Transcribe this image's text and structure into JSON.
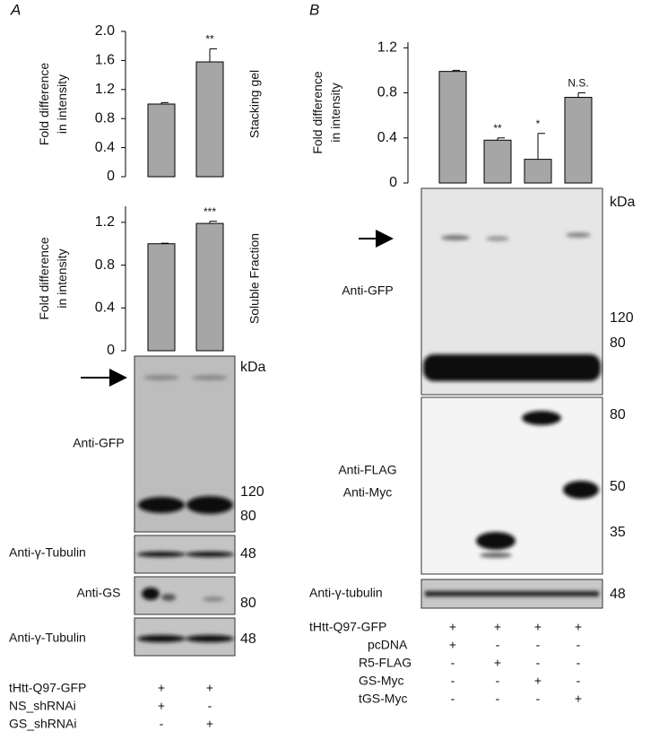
{
  "chart_data": [
    {
      "type": "bar",
      "categories": [
        null,
        null
      ],
      "values": [
        1.0,
        1.58
      ],
      "errors": [
        0.02,
        0.18
      ],
      "significance": [
        null,
        "**"
      ],
      "ylabel": [
        "Fold difference",
        "in intensity"
      ],
      "side_label": "Stacking gel",
      "color": "#a6a6a6",
      "ylim": [
        0,
        2.0
      ],
      "yticks": [
        0,
        0.4,
        0.8,
        1.2,
        1.6,
        {
          "value": 2.0,
          "label": "2.0"
        }
      ]
    },
    {
      "type": "bar",
      "categories": [
        null,
        null
      ],
      "values": [
        1.0,
        1.19
      ],
      "errors": [
        0.005,
        0.02
      ],
      "significance": [
        null,
        "***"
      ],
      "ylabel": [
        "Fold difference",
        "in intensity"
      ],
      "side_label": "Soluble Fraction",
      "color": "#a6a6a6",
      "ylim": [
        0,
        1.35
      ],
      "yticks": [
        0,
        0.4,
        0.8,
        1.2
      ]
    },
    {
      "type": "bar",
      "categories": [
        null,
        null,
        null,
        null
      ],
      "values": [
        0.99,
        0.38,
        0.21,
        0.76
      ],
      "errors": [
        0.01,
        0.02,
        0.23,
        0.04
      ],
      "significance": [
        null,
        "**",
        "*",
        "N.S."
      ],
      "ylabel": [
        "Fold difference",
        "in intensity"
      ],
      "color": "#a6a6a6",
      "ylim": [
        0,
        1.25
      ],
      "yticks": [
        0,
        0.4,
        0.8,
        1.2
      ]
    }
  ],
  "panel_a": {
    "label": "A",
    "blot_labels": [
      "Anti-GFP",
      "Anti-γ-Tubulin",
      "Anti-GS",
      "Anti-γ-Tubulin"
    ],
    "markers": [
      "kDa",
      "120",
      "80",
      "48",
      "80",
      "48"
    ],
    "conditions": [
      {
        "name": "tHtt-Q97-GFP",
        "signs": [
          "+",
          "+"
        ]
      },
      {
        "name": "NS_shRNAi",
        "signs": [
          "+",
          "-"
        ]
      },
      {
        "name": "GS_shRNAi",
        "signs": [
          "-",
          "+"
        ]
      }
    ]
  },
  "panel_b": {
    "label": "B",
    "blot_labels": [
      "Anti-GFP",
      "Anti-FLAG",
      "Anti-Myc",
      "Anti-γ-tubulin"
    ],
    "markers": [
      "kDa",
      "120",
      "80",
      "80",
      "50",
      "35",
      "48"
    ],
    "conditions": [
      {
        "name": "tHtt-Q97-GFP",
        "signs": [
          "+",
          "+",
          "+",
          "+"
        ]
      },
      {
        "name": "pcDNA",
        "signs": [
          "+",
          "-",
          "-",
          "-"
        ]
      },
      {
        "name": "R5-FLAG",
        "signs": [
          "-",
          "+",
          "-",
          "-"
        ]
      },
      {
        "name": "GS-Myc",
        "signs": [
          "-",
          "-",
          "+",
          "-"
        ]
      },
      {
        "name": "tGS-Myc",
        "signs": [
          "-",
          "-",
          "-",
          "+"
        ]
      }
    ]
  }
}
